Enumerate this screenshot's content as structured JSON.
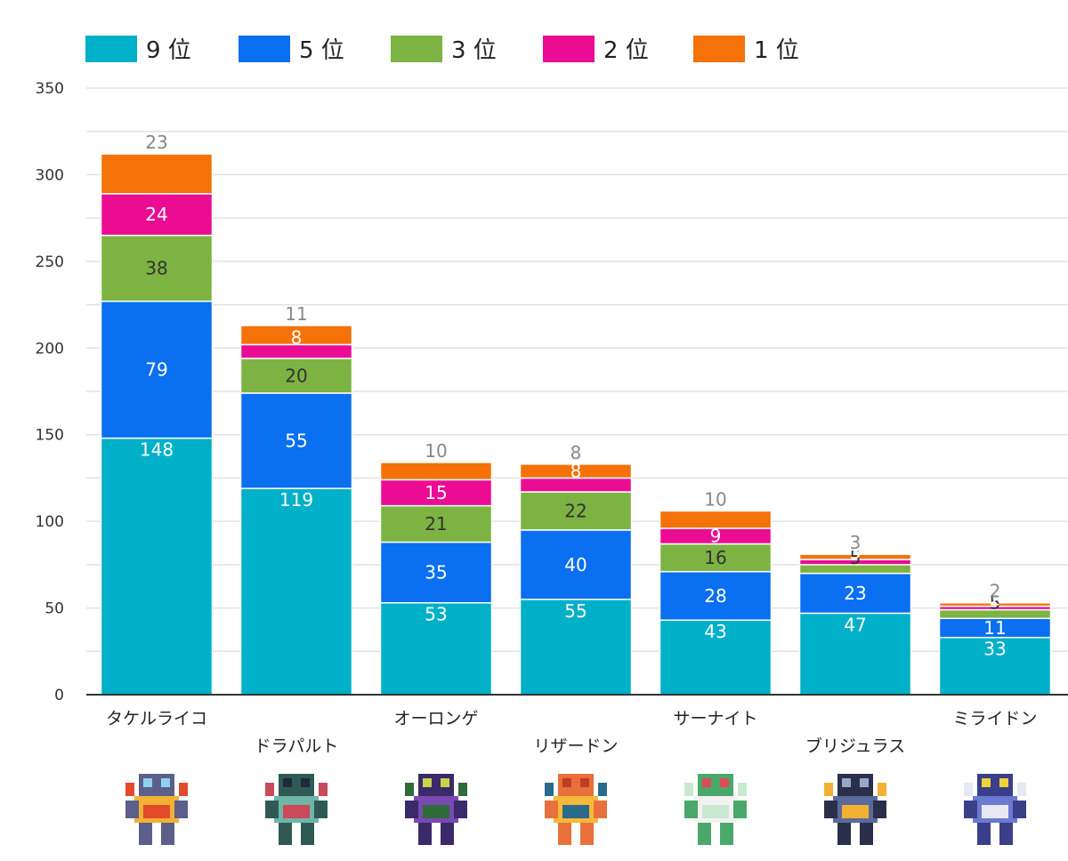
{
  "chart_data": {
    "type": "bar",
    "stacked": true,
    "categories": [
      "タケルライコ",
      "ドラパルト",
      "オーロンゲ",
      "リザードン",
      "サーナイト",
      "ブリジュラス",
      "ミライドン"
    ],
    "series": [
      {
        "name": "9 位",
        "color": "#00b0c8",
        "values": [
          148,
          119,
          53,
          55,
          43,
          47,
          33
        ]
      },
      {
        "name": "5 位",
        "color": "#0a6ff0",
        "values": [
          79,
          55,
          35,
          40,
          28,
          23,
          11
        ]
      },
      {
        "name": "3 位",
        "color": "#7cb342",
        "values": [
          38,
          20,
          21,
          22,
          16,
          5,
          5
        ]
      },
      {
        "name": "2 位",
        "color": "#ec0c94",
        "values": [
          24,
          8,
          15,
          8,
          9,
          3,
          2
        ]
      },
      {
        "name": "1 位",
        "color": "#f57209",
        "values": [
          23,
          11,
          10,
          8,
          10,
          3,
          2
        ]
      }
    ],
    "ylim": [
      0,
      350
    ],
    "yticks": [
      0,
      50,
      100,
      150,
      200,
      250,
      300,
      350
    ],
    "grid": true,
    "legend": "top-left",
    "title": "",
    "xlabel": "",
    "ylabel": ""
  },
  "sprites": [
    "raging-bolt-sprite",
    "dragapult-sprite",
    "grimmsnarl-sprite",
    "charizard-sprite",
    "gardevoir-sprite",
    "archaludon-sprite",
    "miraidon-sprite"
  ]
}
